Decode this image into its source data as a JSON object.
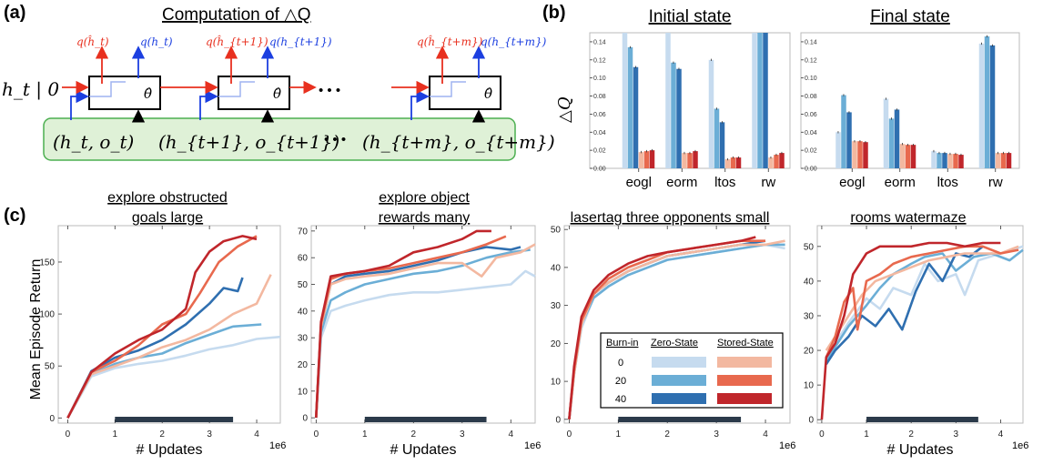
{
  "panel_a": {
    "label": "(a)",
    "title": "Computation of △Q",
    "h_input": "h_t | 0",
    "theta": "θ̂",
    "dots": "• • •",
    "q_red": [
      "q(ĥ_t)",
      "q(ĥ_{t+1})",
      "q(ĥ_{t+m})"
    ],
    "q_blue": [
      "q(h_t)",
      "q(h_{t+1})",
      "q(h_{t+m})"
    ],
    "inputs": [
      "(h_t,  o_t)",
      "(h_{t+1}, o_{t+1})",
      "(h_{t+m}, o_{t+m})"
    ],
    "colors": {
      "red": "#e8301f",
      "blue": "#1c3fe0",
      "box_fill": "#dff1d7",
      "box_stroke": "#4caf50"
    }
  },
  "panel_b": {
    "label": "(b)",
    "ylabel": "△Q",
    "colors": [
      "#c6dbef",
      "#6baed6",
      "#2f6fb0",
      "#f3b8a0",
      "#e8694e",
      "#c0262b"
    ],
    "charts": [
      {
        "title": "Initial state",
        "type": "bar",
        "categories": [
          "eogl",
          "eorm",
          "ltos",
          "rw"
        ],
        "ylim": [
          0,
          0.15
        ],
        "yticks": [
          0.0,
          0.02,
          0.04,
          0.06,
          0.08,
          0.1,
          0.12,
          0.14
        ],
        "series": [
          {
            "values": [
              0.15,
              0.15,
              0.12,
              0.15
            ]
          },
          {
            "values": [
              0.134,
              0.117,
              0.066,
              0.15
            ]
          },
          {
            "values": [
              0.112,
              0.11,
              0.051,
              0.15
            ]
          },
          {
            "values": [
              0.018,
              0.017,
              0.01,
              0.012
            ]
          },
          {
            "values": [
              0.019,
              0.017,
              0.012,
              0.015
            ]
          },
          {
            "values": [
              0.02,
              0.019,
              0.012,
              0.017
            ]
          }
        ]
      },
      {
        "title": "Final state",
        "type": "bar",
        "categories": [
          "eogl",
          "eorm",
          "ltos",
          "rw"
        ],
        "ylim": [
          0,
          0.15
        ],
        "yticks": [
          0.0,
          0.02,
          0.04,
          0.06,
          0.08,
          0.1,
          0.12,
          0.14
        ],
        "series": [
          {
            "values": [
              0.04,
              0.077,
              0.019,
              0.138
            ]
          },
          {
            "values": [
              0.081,
              0.055,
              0.017,
              0.146
            ]
          },
          {
            "values": [
              0.062,
              0.065,
              0.017,
              0.136
            ]
          },
          {
            "values": [
              0.03,
              0.027,
              0.016,
              0.017
            ]
          },
          {
            "values": [
              0.03,
              0.026,
              0.016,
              0.017
            ]
          },
          {
            "values": [
              0.029,
              0.026,
              0.015,
              0.017
            ]
          }
        ]
      }
    ]
  },
  "panel_c": {
    "label": "(c)",
    "ylabel": "Mean Episode Return",
    "xlabel": "# Updates",
    "xexp": "1e6",
    "legend": {
      "header_burnin": "Burn-in",
      "header_zero": "Zero-State",
      "header_stored": "Stored-State",
      "rows": [
        "0",
        "20",
        "40"
      ]
    },
    "series_colors": [
      "#c6dbef",
      "#6baed6",
      "#2f6fb0",
      "#f3b8a0",
      "#e8694e",
      "#c0262b"
    ],
    "highlight_range": [
      1.0,
      3.5
    ],
    "charts": [
      {
        "title_lines": [
          "explore obstructed",
          "goals large"
        ],
        "type": "line",
        "xlim": [
          -0.2,
          4.5
        ],
        "ylim": [
          -5,
          185
        ],
        "xticks": [
          0,
          1,
          2,
          3,
          4
        ],
        "yticks": [
          0,
          50,
          100,
          150
        ],
        "series": [
          {
            "x": [
              0,
              0.5,
              1,
              1.5,
              2,
              2.5,
              3,
              3.5,
              4,
              4.5
            ],
            "y": [
              0,
              40,
              48,
              52,
              55,
              60,
              66,
              70,
              76,
              78
            ]
          },
          {
            "x": [
              0,
              0.5,
              1,
              1.5,
              2,
              2.5,
              3,
              3.5,
              4.1
            ],
            "y": [
              0,
              42,
              52,
              58,
              62,
              72,
              80,
              88,
              90
            ]
          },
          {
            "x": [
              0,
              0.5,
              1,
              1.5,
              2,
              2.5,
              3,
              3.3,
              3.6,
              3.7
            ],
            "y": [
              0,
              45,
              58,
              65,
              75,
              90,
              110,
              125,
              122,
              135
            ]
          },
          {
            "x": [
              0,
              0.5,
              1,
              1.5,
              2,
              2.5,
              3,
              3.5,
              4,
              4.3
            ],
            "y": [
              0,
              42,
              50,
              58,
              68,
              75,
              85,
              100,
              110,
              138
            ]
          },
          {
            "x": [
              0,
              0.5,
              1,
              1.5,
              2,
              2.5,
              2.8,
              3.2,
              3.6,
              4
            ],
            "y": [
              0,
              44,
              55,
              70,
              90,
              100,
              120,
              150,
              165,
              175
            ]
          },
          {
            "x": [
              0,
              0.5,
              1,
              1.5,
              2,
              2.5,
              2.7,
              3,
              3.3,
              3.7,
              4
            ],
            "y": [
              0,
              44,
              62,
              75,
              85,
              105,
              140,
              160,
              170,
              175,
              172
            ]
          }
        ]
      },
      {
        "title_lines": [
          "explore object",
          "rewards many"
        ],
        "type": "line",
        "xlim": [
          -0.1,
          4.5
        ],
        "ylim": [
          -2,
          72
        ],
        "xticks": [
          0,
          1,
          2,
          3,
          4
        ],
        "yticks": [
          0,
          10,
          20,
          30,
          40,
          50,
          60,
          70
        ],
        "series": [
          {
            "x": [
              0,
              0.1,
              0.3,
              0.6,
              1,
              1.5,
              2,
              2.5,
              3,
              3.5,
              4,
              4.3,
              4.5
            ],
            "y": [
              0,
              30,
              40,
              42,
              44,
              46,
              47,
              47,
              48,
              49,
              50,
              55,
              53
            ]
          },
          {
            "x": [
              0,
              0.1,
              0.3,
              0.6,
              1,
              1.5,
              2,
              2.5,
              3,
              3.5,
              4,
              4.4
            ],
            "y": [
              0,
              32,
              44,
              47,
              50,
              52,
              54,
              55,
              57,
              60,
              62,
              63
            ]
          },
          {
            "x": [
              0,
              0.1,
              0.3,
              0.6,
              1,
              1.5,
              2,
              2.5,
              3,
              3.5,
              4,
              4.2
            ],
            "y": [
              0,
              34,
              50,
              53,
              54,
              55,
              57,
              59,
              62,
              64,
              63,
              64
            ]
          },
          {
            "x": [
              0,
              0.1,
              0.3,
              0.6,
              1,
              1.5,
              2,
              2.5,
              3,
              3.4,
              3.7,
              4.2,
              4.5
            ],
            "y": [
              0,
              34,
              50,
              52,
              53,
              54,
              56,
              58,
              58,
              53,
              60,
              62,
              65
            ]
          },
          {
            "x": [
              0,
              0.1,
              0.3,
              0.6,
              1,
              1.5,
              2,
              2.5,
              3,
              3.5,
              3.9
            ],
            "y": [
              0,
              35,
              52,
              54,
              55,
              56,
              58,
              60,
              62,
              65,
              68
            ]
          },
          {
            "x": [
              0,
              0.1,
              0.3,
              0.6,
              1,
              1.5,
              2,
              2.5,
              3,
              3.3,
              3.6
            ],
            "y": [
              0,
              36,
              53,
              54,
              55,
              57,
              62,
              64,
              67,
              70,
              70
            ]
          }
        ]
      },
      {
        "title_lines": [
          "lasertag three opponents small"
        ],
        "type": "line",
        "xlim": [
          -0.1,
          4.5
        ],
        "ylim": [
          -1,
          51
        ],
        "xticks": [
          0,
          1,
          2,
          3,
          4
        ],
        "yticks": [
          0,
          10,
          20,
          30,
          40,
          50
        ],
        "series": [
          {
            "x": [
              0,
              0.1,
              0.25,
              0.5,
              0.8,
              1.2,
              1.6,
              2,
              2.5,
              3,
              3.5,
              4,
              4.4
            ],
            "y": [
              0,
              12,
              24,
              32,
              35,
              38,
              40,
              42,
              43,
              44,
              45,
              46,
              45
            ]
          },
          {
            "x": [
              0,
              0.1,
              0.25,
              0.5,
              0.8,
              1.2,
              1.6,
              2,
              2.5,
              3,
              3.5,
              4,
              4.4
            ],
            "y": [
              0,
              12,
              25,
              32,
              35,
              38,
              40,
              42,
              43,
              44,
              45,
              46,
              46
            ]
          },
          {
            "x": [
              0,
              0.1,
              0.25,
              0.5,
              0.8,
              1.2,
              1.6,
              2,
              2.5,
              3,
              3.5,
              4
            ],
            "y": [
              0,
              13,
              26,
              33,
              36,
              39,
              41,
              43,
              44,
              45,
              46,
              47
            ]
          },
          {
            "x": [
              0,
              0.1,
              0.25,
              0.5,
              0.8,
              1.2,
              1.6,
              2,
              2.5,
              3,
              3.5,
              4,
              4.4
            ],
            "y": [
              0,
              12,
              25,
              33,
              36,
              39,
              41,
              43,
              44,
              45,
              46,
              46,
              47
            ]
          },
          {
            "x": [
              0,
              0.1,
              0.25,
              0.5,
              0.8,
              1.2,
              1.6,
              2,
              2.5,
              3,
              3.5,
              4
            ],
            "y": [
              0,
              13,
              26,
              33,
              37,
              40,
              42,
              44,
              45,
              46,
              47,
              47
            ]
          },
          {
            "x": [
              0,
              0.1,
              0.25,
              0.5,
              0.8,
              1.2,
              1.6,
              2,
              2.5,
              3,
              3.5,
              3.8
            ],
            "y": [
              0,
              14,
              27,
              34,
              38,
              41,
              43,
              44,
              45,
              46,
              47,
              48
            ]
          }
        ]
      },
      {
        "title_lines": [
          "rooms watermaze"
        ],
        "type": "line",
        "xlim": [
          -0.1,
          4.5
        ],
        "ylim": [
          -1,
          56
        ],
        "xticks": [
          0,
          1,
          2,
          3,
          4
        ],
        "yticks": [
          0,
          10,
          20,
          30,
          40,
          50
        ],
        "series": [
          {
            "x": [
              0.1,
              0.3,
              0.6,
              1,
              1.3,
              1.6,
              2,
              2.3,
              2.6,
              3,
              3.2,
              3.5,
              4,
              4.5
            ],
            "y": [
              18,
              22,
              28,
              35,
              32,
              38,
              36,
              45,
              40,
              42,
              36,
              46,
              48,
              50
            ]
          },
          {
            "x": [
              0.1,
              0.3,
              0.6,
              1,
              1.3,
              1.6,
              2,
              2.3,
              2.7,
              3,
              3.4,
              3.8,
              4.2,
              4.5
            ],
            "y": [
              17,
              21,
              27,
              33,
              38,
              42,
              45,
              47,
              48,
              43,
              47,
              48,
              46,
              49
            ]
          },
          {
            "x": [
              0.1,
              0.3,
              0.6,
              0.9,
              1.2,
              1.5,
              1.8,
              2.1,
              2.4,
              2.7,
              3,
              3.3,
              3.6
            ],
            "y": [
              16,
              20,
              24,
              30,
              27,
              32,
              26,
              37,
              45,
              40,
              48,
              47,
              50
            ]
          },
          {
            "x": [
              0.1,
              0.3,
              0.6,
              0.9,
              1.2,
              1.6,
              2,
              2.4,
              2.8,
              3.2,
              3.6,
              4,
              4.4
            ],
            "y": [
              20,
              24,
              30,
              36,
              40,
              42,
              44,
              46,
              47,
              48,
              48,
              48,
              50
            ]
          },
          {
            "x": [
              0.1,
              0.3,
              0.5,
              0.7,
              0.8,
              1,
              1.3,
              1.6,
              2,
              2.4,
              2.8,
              3.2,
              3.6,
              4,
              4.4
            ],
            "y": [
              18,
              24,
              34,
              38,
              26,
              40,
              42,
              45,
              47,
              48,
              49,
              50,
              50,
              48,
              49
            ]
          },
          {
            "x": [
              0,
              0.1,
              0.3,
              0.5,
              0.7,
              1,
              1.3,
              1.6,
              2,
              2.4,
              2.8,
              3.2,
              3.6,
              4
            ],
            "y": [
              0,
              18,
              22,
              30,
              42,
              48,
              50,
              50,
              50,
              51,
              51,
              50,
              51,
              51
            ]
          }
        ]
      }
    ]
  }
}
